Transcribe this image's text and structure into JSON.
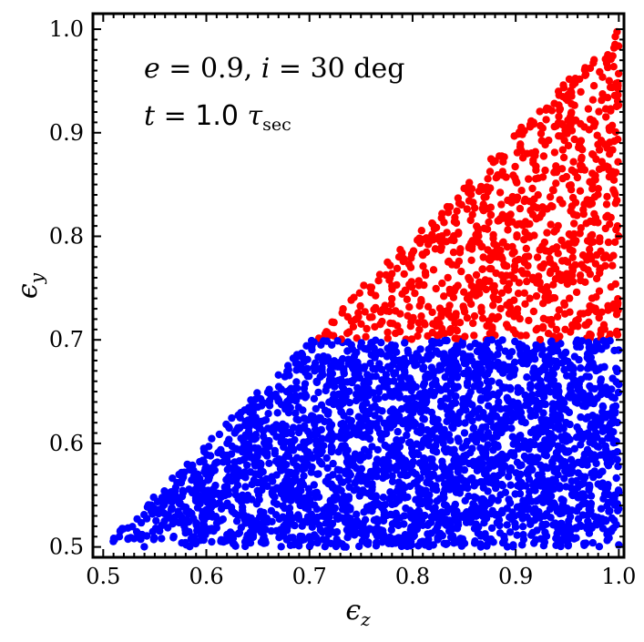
{
  "chart_data": {
    "type": "scatter",
    "xlabel_symbol": "ϵ",
    "xlabel_sub": "z",
    "ylabel_symbol": "ϵ",
    "ylabel_sub": "y",
    "xlim": [
      0.49,
      1.005
    ],
    "ylim": [
      0.49,
      1.015
    ],
    "xticks": [
      "0.5",
      "0.6",
      "0.7",
      "0.8",
      "0.9",
      "1.0"
    ],
    "yticks": [
      "0.5",
      "0.6",
      "0.7",
      "0.8",
      "0.9",
      "1.0"
    ],
    "xtick_values": [
      0.5,
      0.6,
      0.7,
      0.8,
      0.9,
      1.0
    ],
    "ytick_values": [
      0.5,
      0.6,
      0.7,
      0.8,
      0.9,
      1.0
    ],
    "grid": false,
    "annotations": {
      "line1_e": "e",
      "line1_eq1": " = 0.9, ",
      "line1_i": "i",
      "line1_eq2": " = 30 deg",
      "line2_t": "t",
      "line2_eq": " = ",
      "line2_val": "1.0",
      "line2_tau": " τ",
      "line2_sub": "sec"
    },
    "series": [
      {
        "color": "#ff0000",
        "region": "y > 0.7 and y > x",
        "approx_points": 900
      },
      {
        "color": "#0000ff",
        "region": "y < 0.7 or y < x",
        "approx_points": 3000
      }
    ]
  }
}
